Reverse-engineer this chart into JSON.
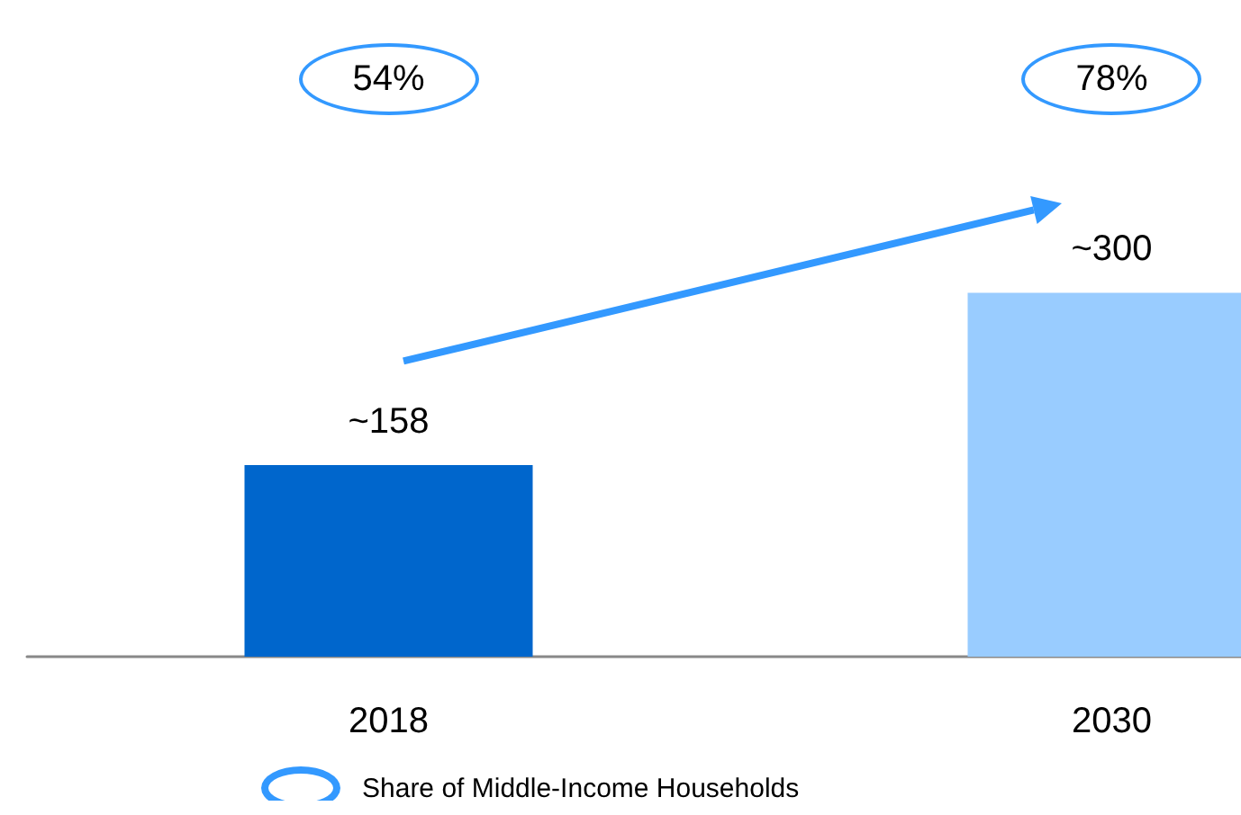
{
  "chart_data": {
    "type": "bar",
    "categories": [
      "2018",
      "2030"
    ],
    "values": [
      158,
      300
    ],
    "value_labels": [
      "~158",
      "~300"
    ],
    "colors": [
      "#0066cc",
      "#99ccff"
    ],
    "annotations": [
      "54%",
      "78%",
      "Share of Middle-Income Households"
    ]
  }
}
